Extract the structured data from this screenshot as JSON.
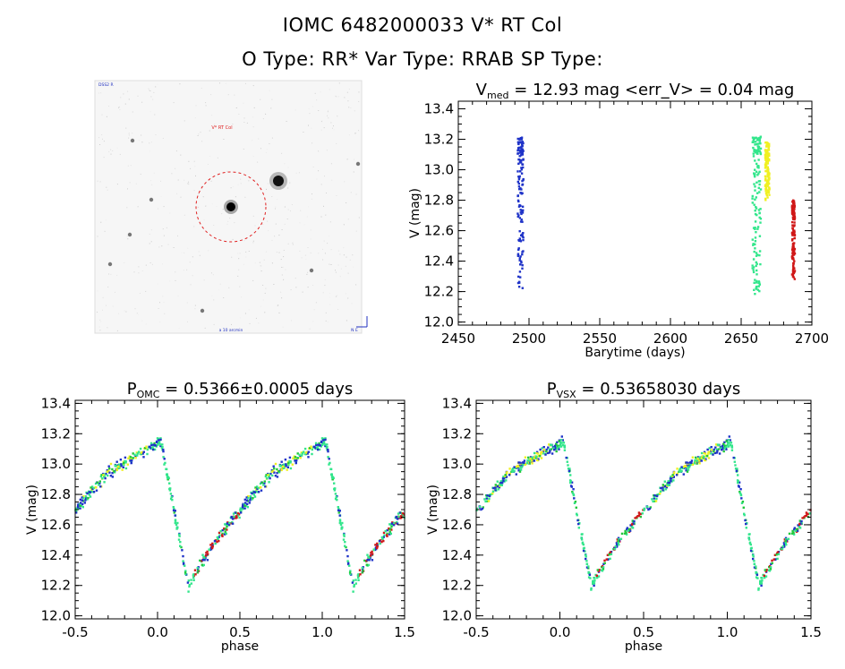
{
  "header": {
    "line1": "IOMC 6482000033    V* RT Col",
    "line2": "O Type: RR*  Var Type: RRAB  SP Type:"
  },
  "image": {
    "label_top": "V* RT Col",
    "corner_top_left": "DSS2 R",
    "bottom_label": "a 10 arcmin",
    "corner_bottom_right": "N  E"
  },
  "colors": {
    "blue": "#1f33c8",
    "cyan": "#33e68c",
    "yellow": "#f0f022",
    "red": "#d01818",
    "green": "#22c83c"
  },
  "chart_data": [
    {
      "type": "scatter",
      "title_main": "V",
      "title_sub": "med",
      "title_rest": " = 12.93 mag <err_V> = 0.04 mag",
      "xlabel": "Barytime (days)",
      "ylabel": "V (mag)",
      "xlim": [
        2450,
        2700
      ],
      "ylim": [
        13.45,
        11.98
      ],
      "xticks": [
        2450,
        2500,
        2550,
        2600,
        2650,
        2700
      ],
      "yticks": [
        "12.0",
        "12.2",
        "12.4",
        "12.6",
        "12.8",
        "13.0",
        "13.2",
        "13.4"
      ],
      "yticks_num": [
        12.0,
        12.2,
        12.4,
        12.6,
        12.8,
        13.0,
        13.2,
        13.4
      ],
      "series": [
        {
          "color_key": "blue",
          "x_range": [
            2492,
            2496
          ],
          "y_range": [
            12.22,
            13.22
          ]
        },
        {
          "color_key": "cyan",
          "x_range": [
            2658,
            2664
          ],
          "y_range": [
            12.18,
            13.22
          ]
        },
        {
          "color_key": "yellow",
          "x_range": [
            2667,
            2670
          ],
          "y_range": [
            12.8,
            13.18
          ]
        },
        {
          "color_key": "red",
          "x_range": [
            2686,
            2688
          ],
          "y_range": [
            12.28,
            12.8
          ]
        }
      ]
    },
    {
      "type": "scatter",
      "title_main": "P",
      "title_sub": "OMC",
      "title_rest": " = 0.5366±0.0005 days",
      "xlabel": "phase",
      "ylabel": "V (mag)",
      "xlim": [
        -0.5,
        1.5
      ],
      "ylim": [
        13.42,
        11.98
      ],
      "xticks": [
        "-0.5",
        "0.0",
        "0.5",
        "1.0",
        "1.5"
      ],
      "xticks_num": [
        -0.5,
        0.0,
        0.5,
        1.0,
        1.5
      ],
      "yticks": [
        "12.0",
        "12.2",
        "12.4",
        "12.6",
        "12.8",
        "13.0",
        "13.2",
        "13.4"
      ],
      "yticks_num": [
        12.0,
        12.2,
        12.4,
        12.6,
        12.8,
        13.0,
        13.2,
        13.4
      ],
      "light_curve": {
        "min_phase": 0.02,
        "max_phase": 0.19,
        "max_mag": 12.18,
        "min_mag": 13.15,
        "mid_mag": 12.95
      }
    },
    {
      "type": "scatter",
      "title_main": "P",
      "title_sub": "VSX",
      "title_rest": " = 0.53658030 days",
      "xlabel": "phase",
      "ylabel": "V (mag)",
      "xlim": [
        -0.5,
        1.5
      ],
      "ylim": [
        13.42,
        11.98
      ],
      "xticks": [
        "-0.5",
        "0.0",
        "0.5",
        "1.0",
        "1.5"
      ],
      "xticks_num": [
        -0.5,
        0.0,
        0.5,
        1.0,
        1.5
      ],
      "yticks": [
        "12.0",
        "12.2",
        "12.4",
        "12.6",
        "12.8",
        "13.0",
        "13.2",
        "13.4"
      ],
      "yticks_num": [
        12.0,
        12.2,
        12.4,
        12.6,
        12.8,
        13.0,
        13.2,
        13.4
      ],
      "light_curve": {
        "min_phase": 0.02,
        "max_phase": 0.19,
        "max_mag": 12.18,
        "min_mag": 13.15,
        "mid_mag": 12.95
      }
    }
  ]
}
